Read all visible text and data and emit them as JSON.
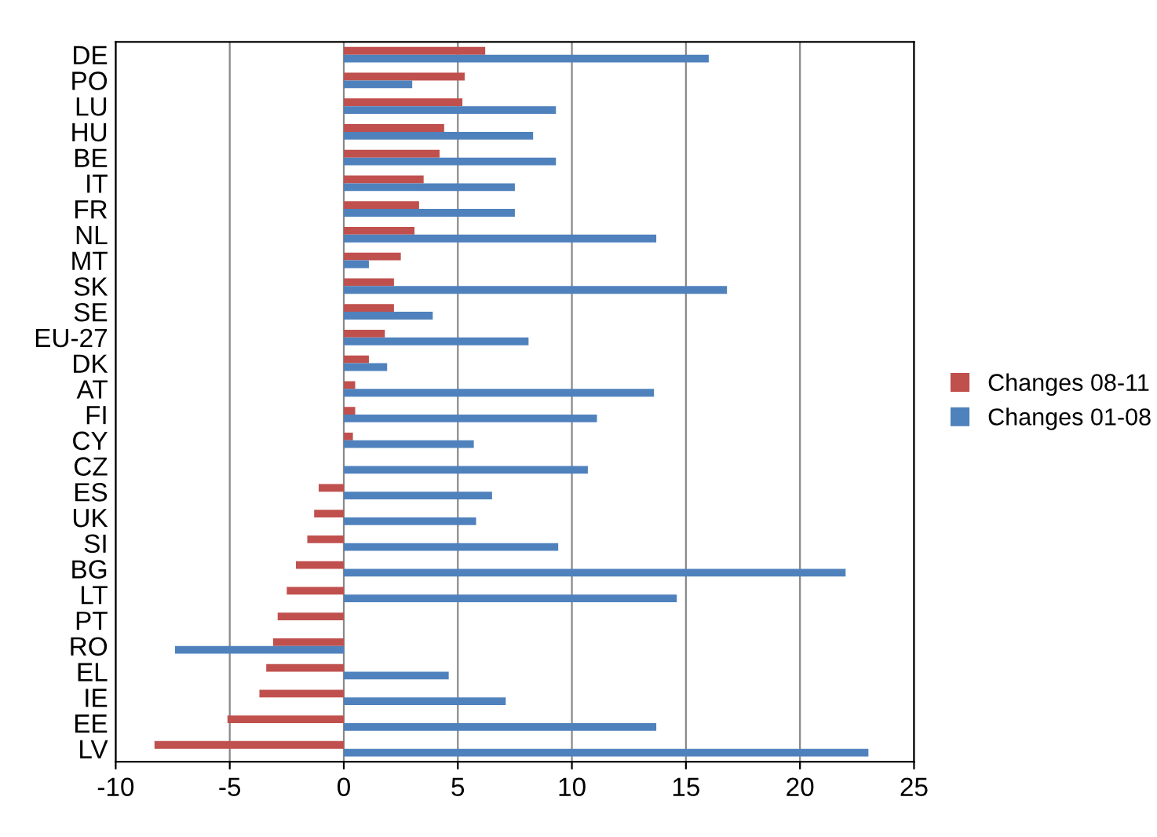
{
  "chart_data": {
    "type": "bar",
    "orientation": "horizontal",
    "categories": [
      "DE",
      "PO",
      "LU",
      "HU",
      "BE",
      "IT",
      "FR",
      "NL",
      "MT",
      "SK",
      "SE",
      "EU-27",
      "DK",
      "AT",
      "FI",
      "CY",
      "CZ",
      "ES",
      "UK",
      "SI",
      "BG",
      "LT",
      "PT",
      "RO",
      "EL",
      "IE",
      "EE",
      "LV"
    ],
    "series": [
      {
        "name": "Changes 08-11",
        "color": "#c0504d",
        "values": [
          6.2,
          5.3,
          5.2,
          4.4,
          4.2,
          3.5,
          3.3,
          3.1,
          2.5,
          2.2,
          2.2,
          1.8,
          1.1,
          0.5,
          0.5,
          0.4,
          0,
          -1.1,
          -1.3,
          -1.6,
          -2.1,
          -2.5,
          -2.9,
          -3.1,
          -3.4,
          -3.7,
          -5.1,
          -8.3
        ]
      },
      {
        "name": "Changes 01-08",
        "color": "#4f81bd",
        "values": [
          16.0,
          3.0,
          9.3,
          8.3,
          9.3,
          7.5,
          7.5,
          13.7,
          1.1,
          16.8,
          3.9,
          8.1,
          1.9,
          13.6,
          11.1,
          5.7,
          10.7,
          6.5,
          5.8,
          9.4,
          22.0,
          14.6,
          0,
          -7.4,
          4.6,
          7.1,
          13.7,
          23.0
        ]
      }
    ],
    "xlim": [
      -10,
      25
    ],
    "xticks": [
      -10,
      -5,
      0,
      5,
      10,
      15,
      20,
      25
    ],
    "grid": "x",
    "legend": "right"
  }
}
